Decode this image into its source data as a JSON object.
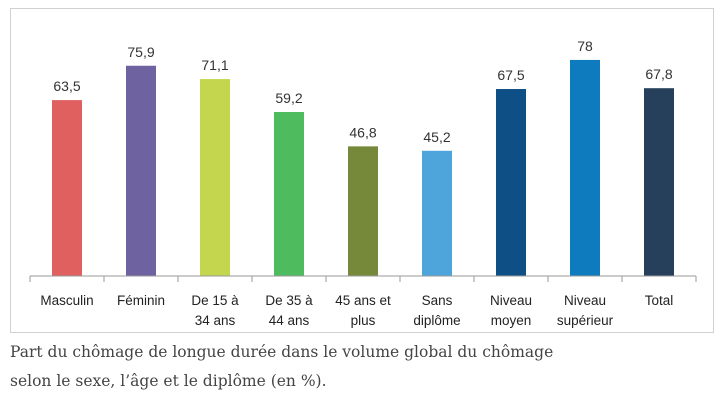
{
  "chart_data": {
    "type": "bar",
    "categories": [
      "Masculin",
      "Féminin",
      "De 15 à|34 ans",
      "De 35 à|44 ans",
      "45 ans et|plus",
      "Sans|diplôme",
      "Niveau|moyen",
      "Niveau|supérieur",
      "Total"
    ],
    "values": [
      63.5,
      75.9,
      71.1,
      59.2,
      46.8,
      45.2,
      67.5,
      78,
      67.8
    ],
    "value_labels": [
      "63,5",
      "75,9",
      "71,1",
      "59,2",
      "46,8",
      "45,2",
      "67,5",
      "78",
      "67,8"
    ],
    "colors": [
      "#E06060",
      "#6E62A0",
      "#C4D64E",
      "#4DBB5E",
      "#76883A",
      "#4EA5DC",
      "#0E4F86",
      "#0E7BBE",
      "#263F5A"
    ],
    "ylim": [
      0,
      100
    ],
    "grid": false,
    "y_axis_shown": false
  },
  "caption": {
    "line1": "Part du chômage de longue durée dans le volume global du chômage",
    "line2": "selon le sexe, l’âge et le diplôme (en %)."
  }
}
